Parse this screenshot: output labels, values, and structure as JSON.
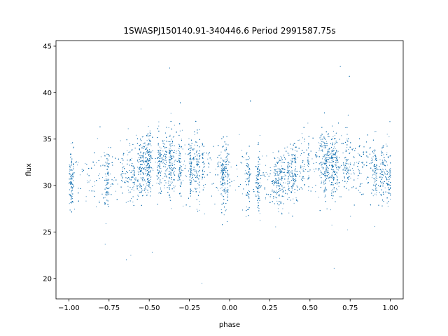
{
  "chart_data": {
    "type": "scatter",
    "title": "1SWASPJ150140.91-340446.6 Period 2991587.75s",
    "xlabel": "phase",
    "ylabel": "flux",
    "xlim": [
      -1.08,
      1.08
    ],
    "ylim": [
      17.8,
      45.6
    ],
    "xticks": [
      -1.0,
      -0.75,
      -0.5,
      -0.25,
      0.0,
      0.25,
      0.5,
      0.75,
      1.0
    ],
    "xtick_labels": [
      "−1.00",
      "−0.75",
      "−0.50",
      "−0.25",
      "0.00",
      "0.25",
      "0.50",
      "0.75",
      "1.00"
    ],
    "yticks": [
      20,
      25,
      30,
      35,
      40,
      45
    ],
    "ytick_labels": [
      "20",
      "25",
      "30",
      "35",
      "40",
      "45"
    ],
    "grid": false,
    "legend": "none",
    "point_color": "#1f77b4",
    "series": [
      {
        "phase_folded_profile": {
          "phase": [
            -1.0,
            -0.9,
            -0.8,
            -0.7,
            -0.6,
            -0.5,
            -0.4,
            -0.3,
            -0.2,
            -0.1,
            0.0,
            0.1,
            0.2,
            0.3,
            0.4,
            0.5,
            0.6,
            0.7,
            0.8,
            0.9,
            1.0
          ],
          "median_flux": [
            31.0,
            30.8,
            30.5,
            30.6,
            31.5,
            32.3,
            32.5,
            32.2,
            32.0,
            31.5,
            31.0,
            30.8,
            30.5,
            30.6,
            31.5,
            32.3,
            32.5,
            32.2,
            32.0,
            31.5,
            31.0
          ],
          "spread_flux": [
            2.6,
            2.7,
            2.6,
            2.5,
            2.6,
            2.8,
            2.9,
            2.7,
            2.6,
            2.6,
            2.6,
            2.7,
            2.6,
            2.5,
            2.6,
            2.8,
            2.9,
            2.7,
            2.6,
            2.6,
            2.6
          ]
        },
        "flux_range": [
          19.0,
          43.0
        ],
        "approx_point_count": 14000
      }
    ]
  }
}
